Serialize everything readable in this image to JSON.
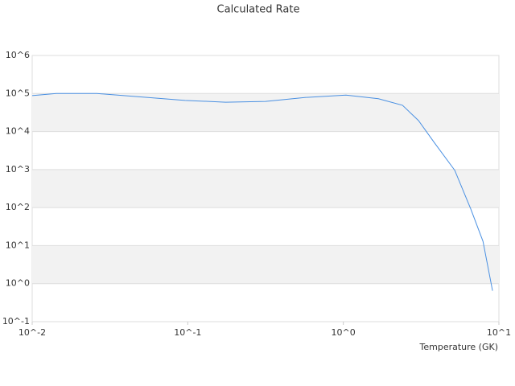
{
  "chart_data": {
    "type": "line",
    "title": "Calculated Rate",
    "x_label": "Temperature (GK)",
    "log_x": true,
    "log_y": true,
    "grid": true,
    "xlim": [
      0.01,
      10
    ],
    "ylim": [
      0.1,
      1000000
    ],
    "xticks": [
      {
        "value": 0.01,
        "label": "10^-2"
      },
      {
        "value": 0.1,
        "label": "10^-1"
      },
      {
        "value": 1,
        "label": "10^0"
      },
      {
        "value": 10,
        "label": "10^1"
      }
    ],
    "yticks": [
      {
        "value": 0.1,
        "label": "10^-1"
      },
      {
        "value": 1,
        "label": "10^0"
      },
      {
        "value": 10,
        "label": "10^1"
      },
      {
        "value": 100,
        "label": "10^2"
      },
      {
        "value": 1000,
        "label": "10^3"
      },
      {
        "value": 10000,
        "label": "10^4"
      },
      {
        "value": 100000,
        "label": "10^5"
      },
      {
        "value": 1000000,
        "label": "10^6"
      }
    ],
    "x": [
      0.01,
      0.0143,
      0.026,
      0.047,
      0.096,
      0.175,
      0.316,
      0.574,
      1.04,
      1.68,
      2.4,
      3.04,
      3.86,
      5.2,
      6.6,
      7.9,
      9.1
    ],
    "series": [
      {
        "color": "#4a90e2",
        "values": [
          88000,
          100000,
          100000,
          83000,
          66000,
          59000,
          62000,
          79000,
          91000,
          73000,
          49000,
          19500,
          5000,
          960,
          91,
          13,
          0.65
        ]
      }
    ]
  }
}
